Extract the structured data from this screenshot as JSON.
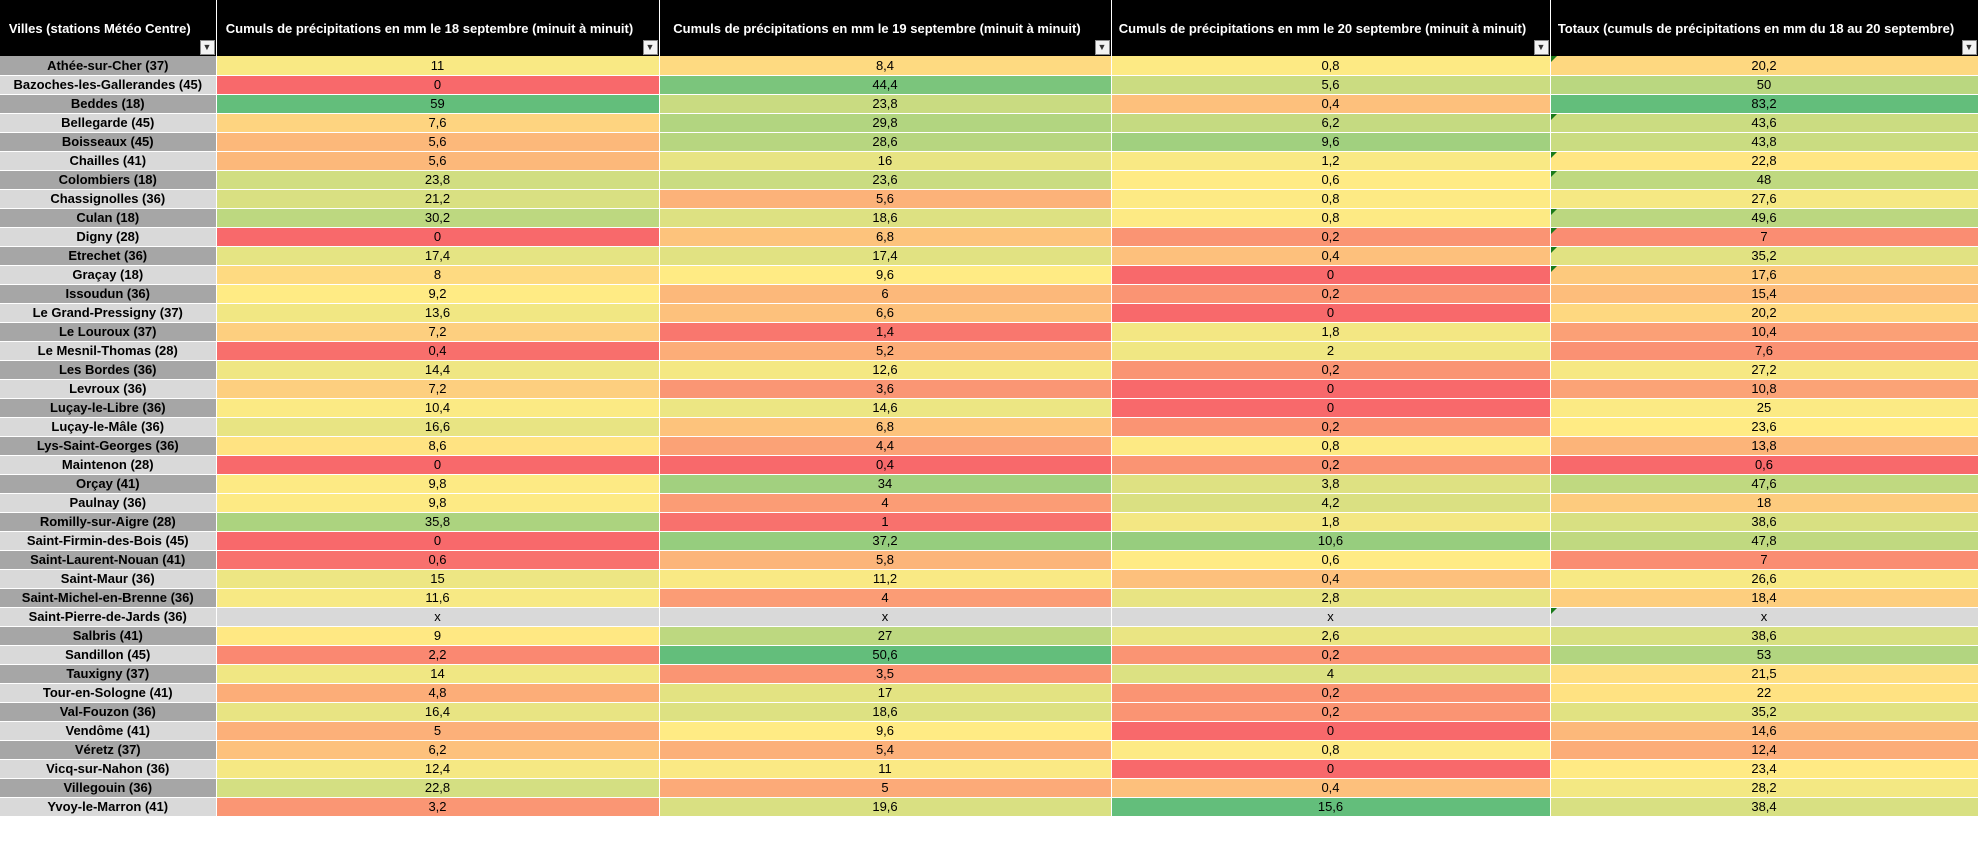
{
  "headers": [
    "Villes (stations Météo Centre)",
    "Cumuls de précipitations en mm le 18 septembre (minuit à minuit)",
    "Cumuls de précipitations en mm le 19 septembre (minuit à minuit)",
    "Cumuls de précipitations en mm le 20 septembre (minuit à minuit)",
    "Totaux (cumuls de précipitations en mm du 18 au 20 septembre)"
  ],
  "filter_icon": "dropdown-arrow-icon",
  "error_marker_color": "#1a7a1a",
  "color_scale": {
    "low": "#f8696b",
    "mid": "#ffeb84",
    "high": "#63be7b"
  },
  "rows": [
    {
      "city": "Athée-sur-Cher (37)",
      "d18": "11",
      "d19": "8,4",
      "d20": "0,8",
      "total": "20,2"
    },
    {
      "city": "Bazoches-les-Gallerandes (45)",
      "d18": "0",
      "d19": "44,4",
      "d20": "5,6",
      "total": "50"
    },
    {
      "city": "Beddes (18)",
      "d18": "59",
      "d19": "23,8",
      "d20": "0,4",
      "total": "83,2"
    },
    {
      "city": "Bellegarde (45)",
      "d18": "7,6",
      "d19": "29,8",
      "d20": "6,2",
      "total": "43,6"
    },
    {
      "city": "Boisseaux (45)",
      "d18": "5,6",
      "d19": "28,6",
      "d20": "9,6",
      "total": "43,8"
    },
    {
      "city": "Chailles (41)",
      "d18": "5,6",
      "d19": "16",
      "d20": "1,2",
      "total": "22,8"
    },
    {
      "city": "Colombiers (18)",
      "d18": "23,8",
      "d19": "23,6",
      "d20": "0,6",
      "total": "48"
    },
    {
      "city": "Chassignolles (36)",
      "d18": "21,2",
      "d19": "5,6",
      "d20": "0,8",
      "total": "27,6"
    },
    {
      "city": "Culan (18)",
      "d18": "30,2",
      "d19": "18,6",
      "d20": "0,8",
      "total": "49,6"
    },
    {
      "city": "Digny (28)",
      "d18": "0",
      "d19": "6,8",
      "d20": "0,2",
      "total": "7"
    },
    {
      "city": "Etrechet (36)",
      "d18": "17,4",
      "d19": "17,4",
      "d20": "0,4",
      "total": "35,2"
    },
    {
      "city": "Graçay (18)",
      "d18": "8",
      "d19": "9,6",
      "d20": "0",
      "total": "17,6"
    },
    {
      "city": "Issoudun (36)",
      "d18": "9,2",
      "d19": "6",
      "d20": "0,2",
      "total": "15,4"
    },
    {
      "city": "Le Grand-Pressigny (37)",
      "d18": "13,6",
      "d19": "6,6",
      "d20": "0",
      "total": "20,2"
    },
    {
      "city": "Le Louroux (37)",
      "d18": "7,2",
      "d19": "1,4",
      "d20": "1,8",
      "total": "10,4"
    },
    {
      "city": "Le Mesnil-Thomas (28)",
      "d18": "0,4",
      "d19": "5,2",
      "d20": "2",
      "total": "7,6"
    },
    {
      "city": "Les Bordes (36)",
      "d18": "14,4",
      "d19": "12,6",
      "d20": "0,2",
      "total": "27,2"
    },
    {
      "city": "Levroux (36)",
      "d18": "7,2",
      "d19": "3,6",
      "d20": "0",
      "total": "10,8"
    },
    {
      "city": "Luçay-le-Libre (36)",
      "d18": "10,4",
      "d19": "14,6",
      "d20": "0",
      "total": "25"
    },
    {
      "city": "Luçay-le-Mâle (36)",
      "d18": "16,6",
      "d19": "6,8",
      "d20": "0,2",
      "total": "23,6"
    },
    {
      "city": "Lys-Saint-Georges (36)",
      "d18": "8,6",
      "d19": "4,4",
      "d20": "0,8",
      "total": "13,8"
    },
    {
      "city": "Maintenon (28)",
      "d18": "0",
      "d19": "0,4",
      "d20": "0,2",
      "total": "0,6"
    },
    {
      "city": "Orçay (41)",
      "d18": "9,8",
      "d19": "34",
      "d20": "3,8",
      "total": "47,6"
    },
    {
      "city": "Paulnay (36)",
      "d18": "9,8",
      "d19": "4",
      "d20": "4,2",
      "total": "18"
    },
    {
      "city": "Romilly-sur-Aigre (28)",
      "d18": "35,8",
      "d19": "1",
      "d20": "1,8",
      "total": "38,6"
    },
    {
      "city": "Saint-Firmin-des-Bois (45)",
      "d18": "0",
      "d19": "37,2",
      "d20": "10,6",
      "total": "47,8"
    },
    {
      "city": "Saint-Laurent-Nouan (41)",
      "d18": "0,6",
      "d19": "5,8",
      "d20": "0,6",
      "total": "7"
    },
    {
      "city": "Saint-Maur (36)",
      "d18": "15",
      "d19": "11,2",
      "d20": "0,4",
      "total": "26,6"
    },
    {
      "city": "Saint-Michel-en-Brenne (36)",
      "d18": "11,6",
      "d19": "4",
      "d20": "2,8",
      "total": "18,4"
    },
    {
      "city": "Saint-Pierre-de-Jards (36)",
      "d18": "x",
      "d19": "x",
      "d20": "x",
      "total": "x"
    },
    {
      "city": "Salbris (41)",
      "d18": "9",
      "d19": "27",
      "d20": "2,6",
      "total": "38,6"
    },
    {
      "city": "Sandillon (45)",
      "d18": "2,2",
      "d19": "50,6",
      "d20": "0,2",
      "total": "53"
    },
    {
      "city": "Tauxigny (37)",
      "d18": "14",
      "d19": "3,5",
      "d20": "4",
      "total": "21,5"
    },
    {
      "city": "Tour-en-Sologne (41)",
      "d18": "4,8",
      "d19": "17",
      "d20": "0,2",
      "total": "22"
    },
    {
      "city": "Val-Fouzon (36)",
      "d18": "16,4",
      "d19": "18,6",
      "d20": "0,2",
      "total": "35,2"
    },
    {
      "city": "Vendôme (41)",
      "d18": "5",
      "d19": "9,6",
      "d20": "0",
      "total": "14,6"
    },
    {
      "city": "Véretz (37)",
      "d18": "6,2",
      "d19": "5,4",
      "d20": "0,8",
      "total": "12,4"
    },
    {
      "city": "Vicq-sur-Nahon (36)",
      "d18": "12,4",
      "d19": "11",
      "d20": "0",
      "total": "23,4"
    },
    {
      "city": "Villegouin (36)",
      "d18": "22,8",
      "d19": "5",
      "d20": "0,4",
      "total": "28,2"
    },
    {
      "city": "Yvoy-le-Marron (41)",
      "d18": "3,2",
      "d19": "19,6",
      "d20": "15,6",
      "total": "38,4"
    }
  ]
}
